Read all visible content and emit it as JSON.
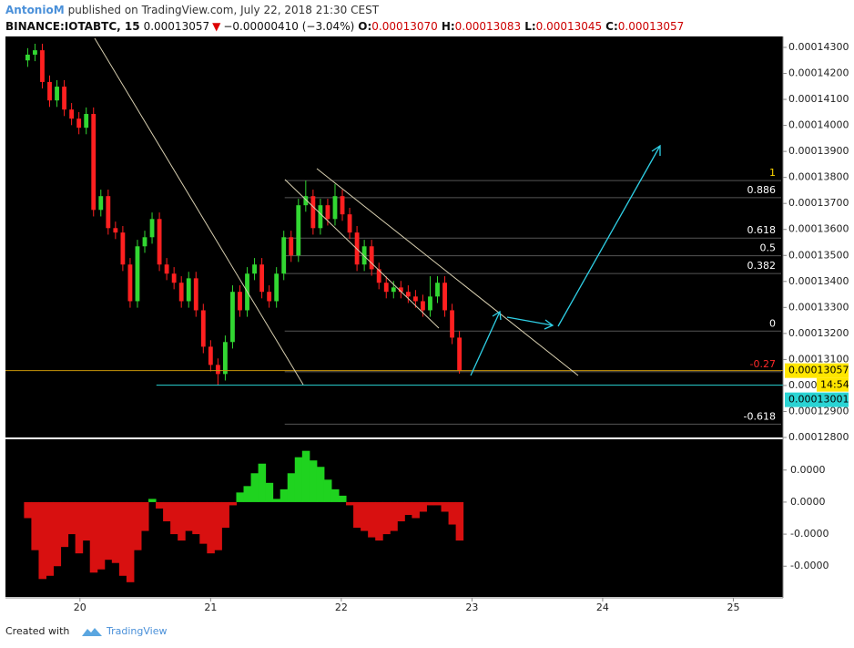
{
  "header": {
    "author": "AntonioM",
    "published": "published on TradingView.com, July 22, 2018 21:30 CEST",
    "symbol": "BINANCE:IOTABTC, 15",
    "last": "0.00013057",
    "change": "−0.00000410 (−3.04%)",
    "o_label": "O:",
    "o_value": "0.00013070",
    "h_label": "H:",
    "h_value": "0.00013083",
    "l_label": "L:",
    "l_value": "0.00013045",
    "c_label": "C:",
    "c_value": "0.00013057"
  },
  "chart_data": [
    {
      "type": "candlestick",
      "up_color": "#32d732",
      "down_color": "#ff2020",
      "x": [
        19.6,
        19.656,
        19.712,
        19.768,
        19.824,
        19.88,
        19.936,
        19.992,
        20.048,
        20.104,
        20.16,
        20.216,
        20.272,
        20.328,
        20.384,
        20.44,
        20.496,
        20.552,
        20.608,
        20.664,
        20.72,
        20.776,
        20.832,
        20.888,
        20.944,
        21,
        21.056,
        21.112,
        21.168,
        21.224,
        21.28,
        21.336,
        21.392,
        21.448,
        21.504,
        21.56,
        21.616,
        21.672,
        21.728,
        21.784,
        21.84,
        21.896,
        21.952,
        22.008,
        22.064,
        22.12,
        22.176,
        22.232,
        22.288,
        22.344,
        22.4,
        22.456,
        22.512,
        22.568,
        22.624,
        22.68,
        22.736,
        22.792,
        22.848,
        22.904
      ],
      "open": [
        0.0001425,
        0.00014272,
        0.00014289,
        0.00014167,
        0.00014096,
        0.00014149,
        0.00014061,
        0.00014026,
        0.00013991,
        0.00014044,
        0.00013675,
        0.00013728,
        0.00013605,
        0.00013588,
        0.00013465,
        0.00013324,
        0.00013535,
        0.0001357,
        0.0001364,
        0.00013465,
        0.0001343,
        0.00013395,
        0.00013324,
        0.00013412,
        0.00013289,
        0.00013149,
        0.00013079,
        0.00013044,
        0.00013167,
        0.0001336,
        0.00013289,
        0.0001343,
        0.00013465,
        0.0001336,
        0.00013324,
        0.0001343,
        0.0001357,
        0.000135,
        0.00013693,
        0.00013728,
        0.00013605,
        0.00013693,
        0.0001364,
        0.00013728,
        0.00013658,
        0.00013588,
        0.00013465,
        0.00013535,
        0.00013447,
        0.00013395,
        0.0001336,
        0.00013377,
        0.0001336,
        0.00013342,
        0.00013324,
        0.00013289,
        0.00013342,
        0.00013395,
        0.00013289,
        0.00013184
      ],
      "high": [
        0.00014297,
        0.00014314,
        0.00014314,
        0.00014192,
        0.00014174,
        0.00014174,
        0.00014086,
        0.00014051,
        0.00014069,
        0.00014069,
        0.00013753,
        0.00013753,
        0.0001363,
        0.00013613,
        0.0001349,
        0.0001356,
        0.00013595,
        0.00013665,
        0.00013665,
        0.0001349,
        0.00013455,
        0.0001342,
        0.00013437,
        0.00013437,
        0.00013314,
        0.00013174,
        0.00013104,
        0.00013192,
        0.00013385,
        0.00013385,
        0.00013455,
        0.0001349,
        0.0001349,
        0.00013385,
        0.00013455,
        0.00013595,
        0.00013595,
        0.00013718,
        0.00013788,
        0.00013753,
        0.00013718,
        0.00013718,
        0.00013775,
        0.00013753,
        0.00013683,
        0.00013613,
        0.0001356,
        0.0001356,
        0.00013472,
        0.0001342,
        0.00013402,
        0.00013402,
        0.00013385,
        0.00013367,
        0.00013349,
        0.0001342,
        0.0001342,
        0.0001342,
        0.00013314,
        0.00013209
      ],
      "low": [
        0.00014225,
        0.00014247,
        0.00014142,
        0.00014071,
        0.00014071,
        0.00014036,
        0.00014001,
        0.00013966,
        0.00013966,
        0.0001365,
        0.0001365,
        0.0001358,
        0.00013563,
        0.0001344,
        0.00013299,
        0.00013299,
        0.0001351,
        0.00013545,
        0.0001344,
        0.00013405,
        0.0001337,
        0.00013299,
        0.00013299,
        0.00013264,
        0.00013124,
        0.00013054,
        0.00013001,
        0.00013019,
        0.00013142,
        0.00013264,
        0.00013264,
        0.00013405,
        0.00013335,
        0.00013299,
        0.00013299,
        0.00013405,
        0.00013475,
        0.00013475,
        0.00013668,
        0.0001358,
        0.0001358,
        0.00013615,
        0.00013615,
        0.00013633,
        0.00013563,
        0.0001344,
        0.0001344,
        0.00013422,
        0.0001337,
        0.00013335,
        0.00013335,
        0.00013335,
        0.00013317,
        0.00013299,
        0.00013264,
        0.00013264,
        0.00013317,
        0.00013264,
        0.00013159,
        0.00013045
      ],
      "close": [
        0.00014272,
        0.00014289,
        0.00014167,
        0.00014096,
        0.00014149,
        0.00014061,
        0.00014026,
        0.00013991,
        0.00014044,
        0.00013675,
        0.00013728,
        0.00013605,
        0.00013588,
        0.00013465,
        0.00013324,
        0.00013535,
        0.0001357,
        0.0001364,
        0.00013465,
        0.0001343,
        0.00013395,
        0.00013324,
        0.00013412,
        0.00013289,
        0.00013149,
        0.00013079,
        0.00013044,
        0.00013167,
        0.0001336,
        0.00013289,
        0.0001343,
        0.00013465,
        0.0001336,
        0.00013324,
        0.0001343,
        0.0001357,
        0.000135,
        0.00013693,
        0.00013728,
        0.00013605,
        0.00013693,
        0.0001364,
        0.00013728,
        0.00013658,
        0.00013588,
        0.00013465,
        0.00013535,
        0.00013447,
        0.00013395,
        0.0001336,
        0.00013377,
        0.0001336,
        0.00013342,
        0.00013324,
        0.00013289,
        0.00013342,
        0.00013395,
        0.00013289,
        0.00013184,
        0.00013057
      ],
      "xlim": [
        19.43,
        25.38
      ],
      "ylim": [
        0.000128,
        0.00014342
      ],
      "yticks": [
        {
          "value": 0.000128,
          "label": "0.00012800"
        },
        {
          "value": 0.000129,
          "label": "0.00012900"
        },
        {
          "value": 0.00013,
          "label": "0.00013000"
        },
        {
          "value": 0.000131,
          "label": "0.00013100"
        },
        {
          "value": 0.000132,
          "label": "0.00013200"
        },
        {
          "value": 0.000133,
          "label": "0.00013300"
        },
        {
          "value": 0.000134,
          "label": "0.00013400"
        },
        {
          "value": 0.000135,
          "label": "0.00013500"
        },
        {
          "value": 0.000136,
          "label": "0.00013600"
        },
        {
          "value": 0.000137,
          "label": "0.00013700"
        },
        {
          "value": 0.000138,
          "label": "0.00013800"
        },
        {
          "value": 0.000139,
          "label": "0.00013900"
        },
        {
          "value": 0.00014,
          "label": "0.00014000"
        },
        {
          "value": 0.000141,
          "label": "0.00014100"
        },
        {
          "value": 0.000142,
          "label": "0.00014200"
        },
        {
          "value": 0.000143,
          "label": "0.00014300"
        }
      ],
      "last_price_color": "#c8960a",
      "countdown": "14:54",
      "hline": {
        "value": 0.00013001,
        "color": "#2ad4d4"
      },
      "fib": {
        "levels": [
          1,
          0.886,
          0.618,
          0.5,
          0.382,
          0,
          -0.27,
          -0.618
        ],
        "price_0": 0.00013209,
        "price_1": 0.00013788,
        "level_colors": [
          "#ffd700",
          "#ffffff",
          "#ffffff",
          "#ffffff",
          "#ffffff",
          "#ffffff",
          "#ff2a2a",
          "#ffffff"
        ],
        "line_color": "#555555"
      }
    },
    {
      "type": "bar",
      "positive_color": "#1fd31f",
      "negative_color": "#d81010",
      "values": [
        -5e-08,
        -1.5e-07,
        -2.4e-07,
        -2.3e-07,
        -2e-07,
        -1.4e-07,
        -1e-07,
        -1.6e-07,
        -1.2e-07,
        -2.2e-07,
        -2.1e-07,
        -1.8e-07,
        -1.9e-07,
        -2.3e-07,
        -2.5e-07,
        -1.5e-07,
        -9e-08,
        1e-08,
        -2e-08,
        -6e-08,
        -1e-07,
        -1.2e-07,
        -9e-08,
        -1e-07,
        -1.3e-07,
        -1.6e-07,
        -1.5e-07,
        -8e-08,
        -1e-08,
        3e-08,
        5e-08,
        9e-08,
        1.2e-07,
        6e-08,
        1e-08,
        4e-08,
        9e-08,
        1.4e-07,
        1.6e-07,
        1.3e-07,
        1.1e-07,
        7e-08,
        4e-08,
        2e-08,
        -1e-08,
        -8e-08,
        -9e-08,
        -1.1e-07,
        -1.2e-07,
        -1e-07,
        -9e-08,
        -6e-08,
        -4e-08,
        -5e-08,
        -3e-08,
        -1e-08,
        -1e-08,
        -3e-08,
        -7e-08,
        -1.2e-07
      ],
      "ylim": [
        -2.96e-07,
        1.96e-07
      ],
      "yticks": [
        {
          "value": 1e-07,
          "label": "0.0000"
        },
        {
          "value": 0,
          "label": "0.0000"
        },
        {
          "value": -1e-07,
          "label": "-0.0000"
        },
        {
          "value": -2e-07,
          "label": "-0.0000"
        }
      ],
      "xticks": [
        20,
        21,
        22,
        23,
        24,
        25
      ]
    }
  ],
  "footer": {
    "created": "Created with",
    "brand": "TradingView"
  }
}
